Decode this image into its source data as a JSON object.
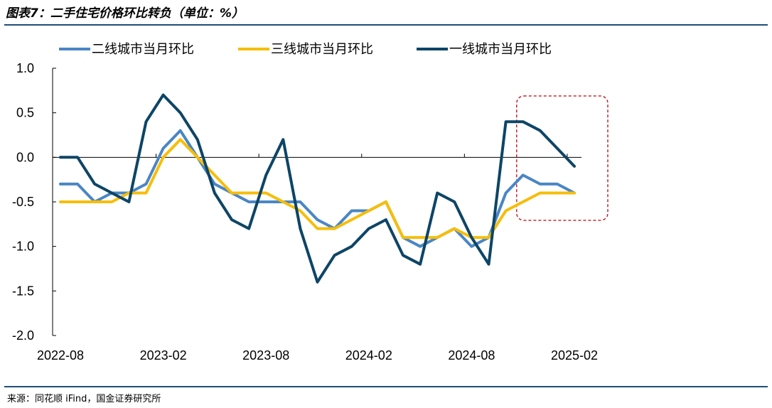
{
  "header": {
    "title": "图表7：二手住宅价格环比转负（单位：%）"
  },
  "footer": {
    "source": "来源：同花顺 iFind，国金证券研究所"
  },
  "chart_data": {
    "type": "line",
    "xlabel": "",
    "ylabel": "",
    "ylim": [
      -2.0,
      1.0
    ],
    "yticks": [
      "1.0",
      "0.5",
      "0.0",
      "-0.5",
      "-1.0",
      "-1.5",
      "-2.0"
    ],
    "ytick_values": [
      1.0,
      0.5,
      0.0,
      -0.5,
      -1.0,
      -1.5,
      -2.0
    ],
    "xtick_labels": [
      "2022-08",
      "2023-02",
      "2023-08",
      "2024-02",
      "2024-08",
      "2025-02"
    ],
    "xtick_index": [
      0,
      6,
      12,
      18,
      24,
      30
    ],
    "x": [
      "2022-08",
      "2022-09",
      "2022-10",
      "2022-11",
      "2022-12",
      "2023-01",
      "2023-02",
      "2023-03",
      "2023-04",
      "2023-05",
      "2023-06",
      "2023-07",
      "2023-08",
      "2023-09",
      "2023-10",
      "2023-11",
      "2023-12",
      "2024-01",
      "2024-02",
      "2024-03",
      "2024-04",
      "2024-05",
      "2024-06",
      "2024-07",
      "2024-08",
      "2024-09",
      "2024-10",
      "2024-11",
      "2024-12",
      "2025-01",
      "2025-02"
    ],
    "legend_position": "top",
    "grid": false,
    "series": [
      {
        "name": "二线城市当月环比",
        "color": "#4a86c5",
        "values": [
          -0.3,
          -0.3,
          -0.5,
          -0.4,
          -0.4,
          -0.3,
          0.1,
          0.3,
          0.0,
          -0.3,
          -0.4,
          -0.5,
          -0.5,
          -0.5,
          -0.5,
          -0.7,
          -0.8,
          -0.6,
          -0.6,
          -0.5,
          -0.9,
          -1.0,
          -0.9,
          -0.8,
          -1.0,
          -0.9,
          -0.4,
          -0.2,
          -0.3,
          -0.3,
          -0.4
        ]
      },
      {
        "name": "三线城市当月环比",
        "color": "#f5be0b",
        "values": [
          -0.5,
          -0.5,
          -0.5,
          -0.5,
          -0.4,
          -0.4,
          0.0,
          0.2,
          0.0,
          -0.2,
          -0.4,
          -0.4,
          -0.4,
          -0.5,
          -0.6,
          -0.8,
          -0.8,
          -0.7,
          -0.6,
          -0.5,
          -0.9,
          -0.9,
          -0.9,
          -0.8,
          -0.9,
          -0.9,
          -0.6,
          -0.5,
          -0.4,
          -0.4,
          -0.4
        ]
      },
      {
        "name": "一线城市当月环比",
        "color": "#0d4566",
        "values": [
          0.0,
          0.0,
          -0.3,
          -0.4,
          -0.5,
          0.4,
          0.7,
          0.5,
          0.2,
          -0.4,
          -0.7,
          -0.8,
          -0.2,
          0.2,
          -0.8,
          -1.4,
          -1.1,
          -1.0,
          -0.8,
          -0.7,
          -1.1,
          -1.2,
          -0.4,
          -0.5,
          -0.9,
          -1.2,
          0.4,
          0.4,
          0.3,
          0.1,
          -0.1
        ]
      }
    ],
    "highlight": {
      "from_index": 28,
      "to_index": 30,
      "color": "#c0000b",
      "style": "dashed"
    }
  }
}
